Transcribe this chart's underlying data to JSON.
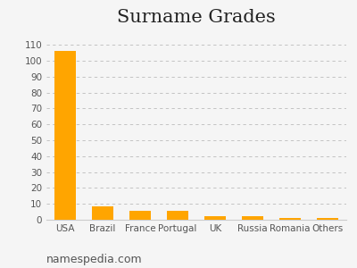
{
  "title": "Surname Grades",
  "categories": [
    "USA",
    "Brazil",
    "France",
    "Portugal",
    "UK",
    "Russia",
    "Romania",
    "Others"
  ],
  "values": [
    106,
    8.5,
    5.5,
    5.5,
    2.5,
    2.5,
    1.0,
    1.0
  ],
  "bar_color": "#FFA500",
  "ylim": [
    0,
    118
  ],
  "yticks": [
    0,
    10,
    20,
    30,
    40,
    50,
    60,
    70,
    80,
    90,
    100,
    110
  ],
  "grid_color": "#bbbbbb",
  "background_color": "#f5f5f5",
  "footer_text": "namespedia.com",
  "title_fontsize": 15,
  "tick_fontsize": 7.5,
  "footer_fontsize": 9
}
